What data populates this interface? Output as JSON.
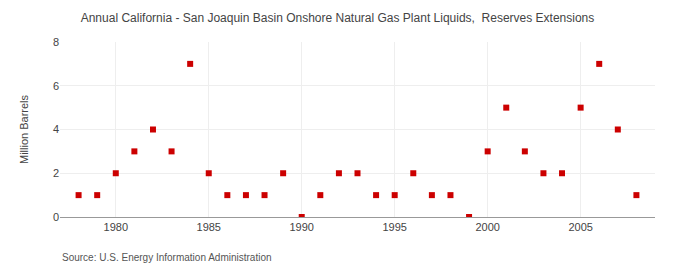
{
  "chart_data": {
    "type": "scatter",
    "title": "Annual California - San Joaquin Basin Onshore Natural Gas Plant Liquids,  Reserves Extensions",
    "ylabel": "Million Barrels",
    "annotations": [
      "Source: U.S. Energy Information Administration"
    ],
    "x": [
      1978,
      1979,
      1980,
      1981,
      1982,
      1983,
      1984,
      1985,
      1986,
      1987,
      1988,
      1989,
      1990,
      1991,
      1992,
      1993,
      1994,
      1995,
      1996,
      1997,
      1998,
      1999,
      2000,
      2001,
      2002,
      2003,
      2004,
      2005,
      2006,
      2007,
      2008
    ],
    "values": [
      1,
      1,
      2,
      3,
      4,
      3,
      7,
      2,
      1,
      1,
      1,
      2,
      0,
      1,
      2,
      2,
      1,
      1,
      2,
      1,
      1,
      0,
      3,
      5,
      3,
      2,
      2,
      5,
      7,
      4,
      1
    ],
    "color": "#cc0000",
    "marker": "square",
    "xlim": [
      1977,
      2009
    ],
    "ylim": [
      0,
      8
    ],
    "xticks": [
      1980,
      1985,
      1990,
      1995,
      2000,
      2005
    ],
    "yticks": [
      0,
      2,
      4,
      6,
      8
    ],
    "grid": true
  }
}
